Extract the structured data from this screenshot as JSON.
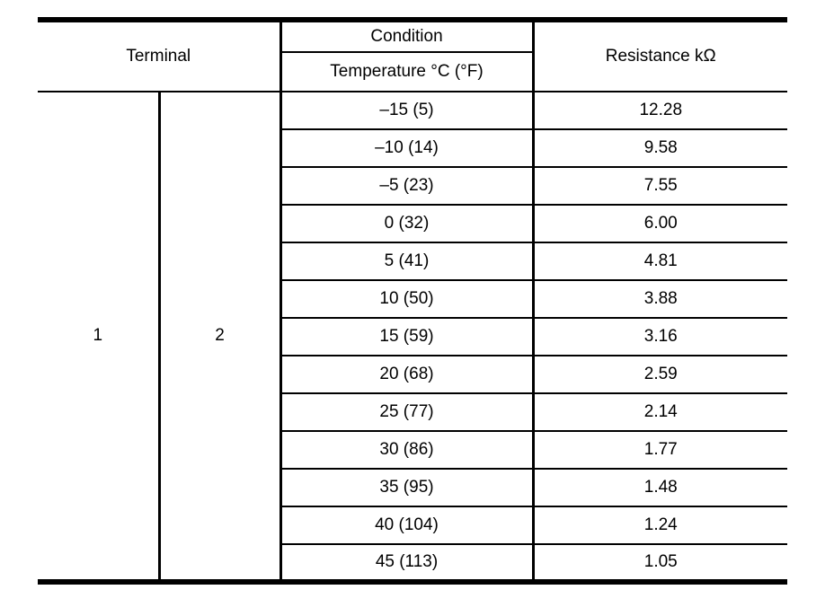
{
  "table": {
    "headers": {
      "terminal": "Terminal",
      "condition": "Condition",
      "temperature": "Temperature °C (°F)",
      "resistance": "Resistance kΩ"
    },
    "terminals": [
      "1",
      "2"
    ],
    "rows": [
      {
        "temperature": "–15 (5)",
        "resistance": "12.28"
      },
      {
        "temperature": "–10 (14)",
        "resistance": "9.58"
      },
      {
        "temperature": "–5 (23)",
        "resistance": "7.55"
      },
      {
        "temperature": "0 (32)",
        "resistance": "6.00"
      },
      {
        "temperature": "5 (41)",
        "resistance": "4.81"
      },
      {
        "temperature": "10 (50)",
        "resistance": "3.88"
      },
      {
        "temperature": "15 (59)",
        "resistance": "3.16"
      },
      {
        "temperature": "20 (68)",
        "resistance": "2.59"
      },
      {
        "temperature": "25 (77)",
        "resistance": "2.14"
      },
      {
        "temperature": "30 (86)",
        "resistance": "1.77"
      },
      {
        "temperature": "35 (95)",
        "resistance": "1.48"
      },
      {
        "temperature": "40 (104)",
        "resistance": "1.24"
      },
      {
        "temperature": "45 (113)",
        "resistance": "1.05"
      }
    ],
    "colors": {
      "line": "#000000",
      "background": "#ffffff",
      "text": "#000000"
    }
  }
}
